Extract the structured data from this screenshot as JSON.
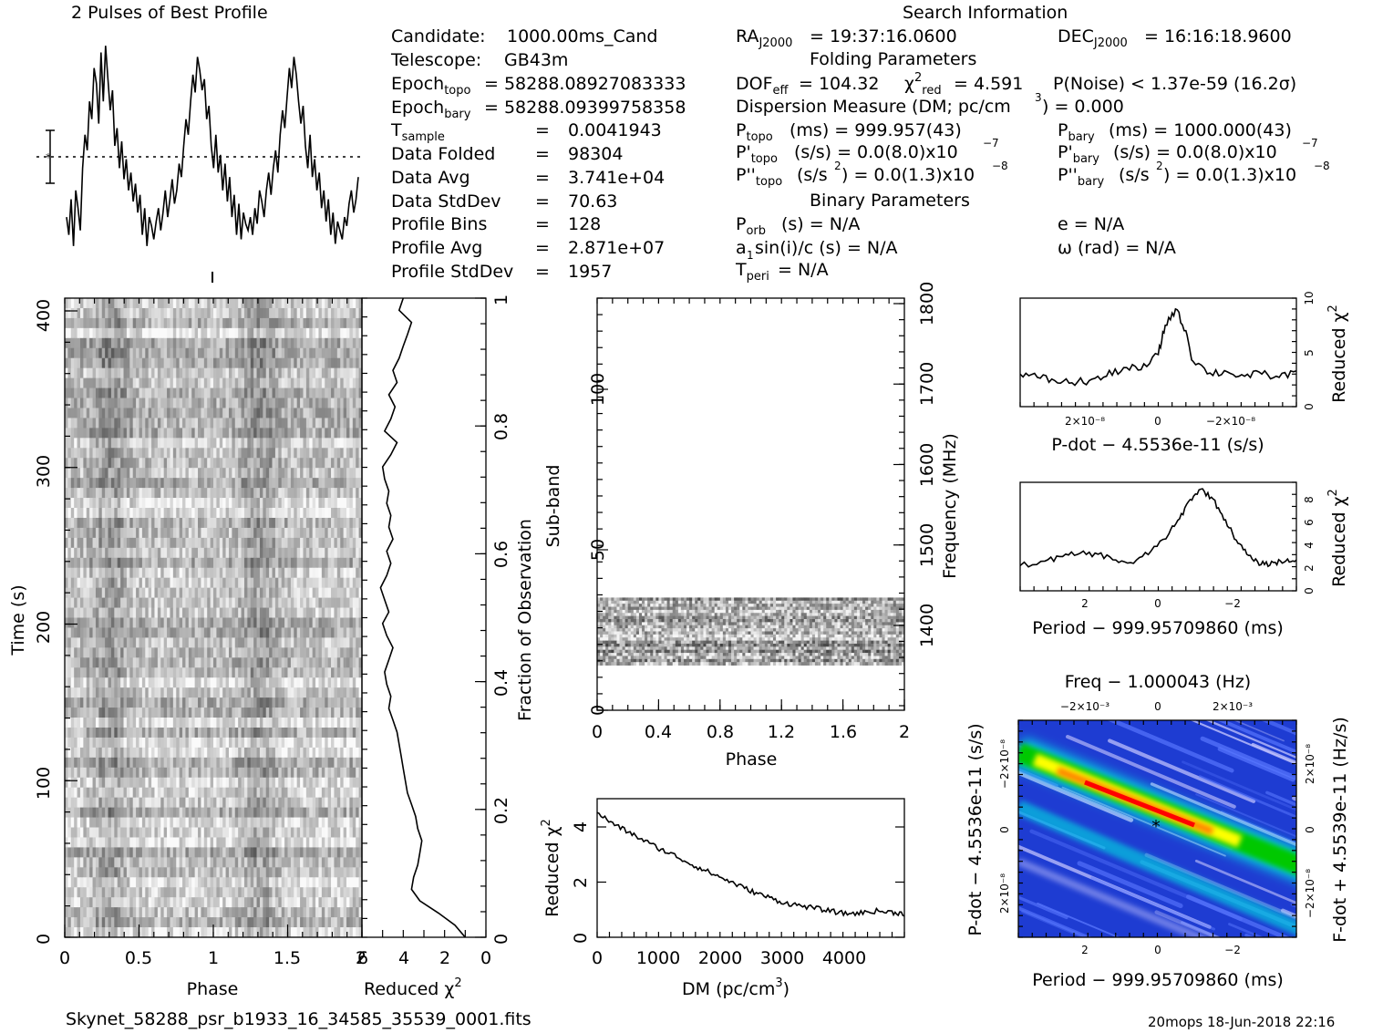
{
  "header": {
    "profile_title": "2 Pulses of Best Profile",
    "search_title": "Search Information",
    "folding_title": "Folding Parameters",
    "binary_title": "Binary Parameters"
  },
  "info": {
    "candidate": [
      "Candidate:",
      "1000.00ms_Cand"
    ],
    "telescope": [
      "Telescope:",
      "GB43m"
    ],
    "epoch_topo": "= 58288.08927083333",
    "epoch_bary": "= 58288.09399758358",
    "rows": [
      {
        "label": "T_sample",
        "value": "0.0041943"
      },
      {
        "label": "Data Folded",
        "value": "98304"
      },
      {
        "label": "Data Avg",
        "value": "3.741e+04"
      },
      {
        "label": "Data StdDev",
        "value": "70.63"
      },
      {
        "label": "Profile Bins",
        "value": "128"
      },
      {
        "label": "Profile Avg",
        "value": "2.871e+07"
      },
      {
        "label": "Profile StdDev",
        "value": "1957"
      }
    ],
    "ra": "= 19:37:16.0600",
    "dec": "= 16:16:18.9600",
    "dof": "= 104.32",
    "chi2": "= 4.591",
    "pnoise": "P(Noise) < 1.37e-59   (16.2σ)",
    "dm": "Dispersion Measure (DM; pc/cm",
    "dm_value": ") = 0.000",
    "ptopo": "(ms)  =   999.957(43)",
    "pbary": "(ms)  =   1000.000(43)",
    "pdtopo": "(s/s) = 0.0(8.0)x10",
    "pdbary": "(s/s) = 0.0(8.0)x10",
    "pddtopo": "(s/s",
    "pddbary": "(s/s",
    "pdd_value": ") = 0.0(1.3)x10",
    "porb": "(s) = N/A",
    "asini": "a",
    "asini_rest": "sin(i)/c (s) = N/A",
    "tperi": "= N/A",
    "ecc": "e = N/A",
    "omega": "ω (rad) = N/A"
  },
  "footer": {
    "filename": "Skynet_58288_psr_b1933_16_34585_35539_0001.fits",
    "stamp": "20mops 18-Jun-2018 22:16"
  },
  "chart_data": [
    {
      "name": "profile",
      "type": "line",
      "title": "2 Pulses of Best Profile",
      "x_range": [
        0,
        2
      ],
      "values": [
        0.18,
        0.1,
        0.26,
        0.05,
        0.3,
        0.22,
        0.12,
        0.4,
        0.55,
        0.48,
        0.7,
        0.62,
        0.85,
        0.78,
        0.6,
        0.92,
        0.7,
        0.95,
        0.8,
        0.66,
        0.75,
        0.5,
        0.58,
        0.4,
        0.52,
        0.35,
        0.44,
        0.3,
        0.38,
        0.25,
        0.33,
        0.2,
        0.28,
        0.1,
        0.22,
        0.05,
        0.18,
        0.14,
        0.08,
        0.16,
        0.22,
        0.12,
        0.2,
        0.3,
        0.18,
        0.26,
        0.35,
        0.24,
        0.3,
        0.42,
        0.36,
        0.5,
        0.62,
        0.55,
        0.7,
        0.82,
        0.74,
        0.9,
        0.84,
        0.75,
        0.8,
        0.62,
        0.68,
        0.5,
        0.4,
        0.55,
        0.38,
        0.46,
        0.3,
        0.42,
        0.25,
        0.36,
        0.18,
        0.28,
        0.1,
        0.24,
        0.08,
        0.2,
        0.15,
        0.12,
        0.18,
        0.1,
        0.22,
        0.15,
        0.3,
        0.25,
        0.18,
        0.3,
        0.38,
        0.28,
        0.4,
        0.48,
        0.38,
        0.55,
        0.66,
        0.58,
        0.72,
        0.85,
        0.76,
        0.9,
        0.82,
        0.7,
        0.6,
        0.68,
        0.5,
        0.4,
        0.55,
        0.36,
        0.44,
        0.3,
        0.38,
        0.22,
        0.3,
        0.16,
        0.26,
        0.1,
        0.2,
        0.06,
        0.16,
        0.12,
        0.08,
        0.18,
        0.14,
        0.24,
        0.3,
        0.2,
        0.26,
        0.36
      ]
    },
    {
      "name": "time-phase",
      "type": "heatmap",
      "xlabel": "Phase",
      "ylabel": "Time (s)",
      "x_range": [
        0,
        2
      ],
      "y_range": [
        0,
        410
      ],
      "x_ticks": [
        "0",
        "0.5",
        "1",
        "1.5",
        "2"
      ],
      "y_ticks": [
        "0",
        "100",
        "200",
        "300",
        "400"
      ],
      "rows": 64
    },
    {
      "name": "reduced-chi2-vs-time",
      "type": "line",
      "xlabel": "Reduced χ²",
      "ylabel": "Fraction of Observation",
      "x_range": [
        6,
        0
      ],
      "y_range": [
        0,
        1
      ],
      "x_ticks": [
        "6",
        "4",
        "2",
        "0"
      ],
      "y_ticks": [
        "0",
        "0.2",
        "0.4",
        "0.6",
        "0.8",
        "1"
      ],
      "x": [
        1.0,
        1.5,
        2.3,
        3.2,
        3.6,
        3.5,
        3.3,
        3.2,
        3.1,
        3.3,
        3.4,
        3.6,
        3.8,
        3.9,
        4.0,
        4.1,
        4.2,
        4.3,
        4.5,
        4.7,
        4.6,
        4.8,
        4.9,
        4.7,
        4.5,
        4.8,
        5.0,
        4.7,
        4.9,
        5.1,
        4.8,
        4.6,
        4.8,
        4.5,
        4.7,
        4.6,
        4.8,
        4.7,
        4.9,
        5.0,
        4.6,
        4.3,
        4.9,
        4.6,
        4.4,
        4.7,
        4.3,
        4.5,
        4.2,
        4.0,
        3.8,
        3.6,
        4.2,
        4.0
      ],
      "y": [
        0.0,
        0.019,
        0.038,
        0.057,
        0.075,
        0.094,
        0.113,
        0.132,
        0.151,
        0.17,
        0.189,
        0.208,
        0.226,
        0.245,
        0.264,
        0.283,
        0.302,
        0.321,
        0.34,
        0.358,
        0.377,
        0.396,
        0.415,
        0.434,
        0.453,
        0.472,
        0.491,
        0.509,
        0.528,
        0.547,
        0.566,
        0.585,
        0.604,
        0.623,
        0.642,
        0.66,
        0.679,
        0.698,
        0.717,
        0.736,
        0.755,
        0.774,
        0.792,
        0.811,
        0.83,
        0.849,
        0.868,
        0.887,
        0.906,
        0.925,
        0.943,
        0.962,
        0.981,
        1.0
      ]
    },
    {
      "name": "subband-phase",
      "type": "heatmap",
      "xlabel": "Phase",
      "ylabel": "Sub-band",
      "y2label": "Frequency (MHz)",
      "x_range": [
        0,
        2
      ],
      "y_range": [
        0,
        128
      ],
      "x_ticks": [
        "0",
        "0.4",
        "0.8",
        "1.2",
        "1.6",
        "2"
      ],
      "y_ticks": [
        "0",
        "50",
        "100"
      ],
      "y2_ticks": [
        "1400",
        "1500",
        "1600",
        "1700",
        "1800"
      ],
      "filled_band": [
        14,
        35
      ]
    },
    {
      "name": "reduced-chi2-vs-dm",
      "type": "line",
      "xlabel": "DM (pc/cm³)",
      "ylabel": "Reduced χ²",
      "x_range": [
        0,
        4950
      ],
      "y_range": [
        0,
        5
      ],
      "x_ticks": [
        "0",
        "1000",
        "2000",
        "3000",
        "4000"
      ],
      "y_ticks": [
        "0",
        "2",
        "4"
      ],
      "x": [
        0,
        250,
        500,
        750,
        1000,
        1250,
        1500,
        1750,
        2000,
        2250,
        2500,
        2750,
        3000,
        3250,
        3500,
        3750,
        4000,
        4250,
        4500,
        4750,
        4950
      ],
      "y": [
        4.5,
        4.1,
        3.8,
        3.5,
        3.2,
        2.95,
        2.65,
        2.4,
        2.15,
        1.9,
        1.65,
        1.45,
        1.25,
        1.15,
        1.05,
        0.95,
        0.85,
        0.88,
        0.95,
        0.9,
        0.85
      ]
    },
    {
      "name": "reduced-chi2-vs-pdot",
      "type": "line",
      "xlabel": "P-dot − 4.5536e-11 (s/s)",
      "ylabel": "Reduced χ²",
      "x_range": [
        4e-08,
        -4e-08
      ],
      "y_range": [
        0,
        10
      ],
      "x_ticks": [
        "2×10⁻⁸",
        "0",
        "−2×10⁻⁸"
      ],
      "y_ticks": [
        "0",
        "5",
        "10"
      ],
      "x": [
        4e-08,
        3.5e-08,
        3e-08,
        2.5e-08,
        2e-08,
        1.5e-08,
        1e-08,
        5e-09,
        0,
        -2e-09,
        -5e-09,
        -8e-09,
        -1e-08,
        -1.5e-08,
        -2e-08,
        -2.5e-08,
        -3e-08,
        -3.5e-08,
        -4e-08
      ],
      "y": [
        3.0,
        2.7,
        2.4,
        2.2,
        2.4,
        2.8,
        3.6,
        3.4,
        4.8,
        7.5,
        9.0,
        7.0,
        4.2,
        3.1,
        3.2,
        2.8,
        3.0,
        2.7,
        3.3
      ]
    },
    {
      "name": "reduced-chi2-vs-period",
      "type": "line",
      "xlabel": "Period − 999.95709860 (ms)",
      "ylabel": "Reduced χ²",
      "x_range": [
        4.2,
        -3.6
      ],
      "y_range": [
        0,
        9.5
      ],
      "x_ticks": [
        "2",
        "0",
        "−2"
      ],
      "y_ticks": [
        "0",
        "2",
        "4",
        "6",
        "8"
      ],
      "x": [
        4.2,
        3.5,
        3.0,
        2.5,
        2.0,
        1.5,
        1.0,
        0.5,
        0.0,
        -0.3,
        -0.6,
        -0.9,
        -1.2,
        -1.5,
        -1.8,
        -2.1,
        -2.4,
        -2.7,
        -3.0,
        -3.3,
        -3.6
      ],
      "y": [
        2.2,
        2.6,
        3.0,
        3.3,
        3.2,
        2.7,
        2.4,
        3.5,
        5.0,
        6.3,
        8.0,
        8.9,
        8.2,
        6.7,
        5.0,
        3.6,
        2.6,
        2.3,
        2.5,
        2.6,
        2.7
      ]
    },
    {
      "name": "period-pdot-plane",
      "type": "heatmap",
      "title": "Freq − 1.000043 (Hz)",
      "xlabel": "Period − 999.95709860 (ms)",
      "ylabel": "P-dot − 4.5536e-11 (s/s)",
      "y2label": "F-dot + 4.5539e-11 (Hz/s)",
      "x_ticks": [
        "2",
        "0",
        "−2"
      ],
      "x2_ticks": [
        "−2×10⁻³",
        "0",
        "2×10⁻³"
      ],
      "y_ticks": [
        "2×10⁻⁸",
        "0",
        "−2×10⁻⁸"
      ],
      "y2_ticks": [
        "−2×10⁻⁸",
        "0",
        "2×10⁻⁸"
      ],
      "colors": [
        "#1e3cd2",
        "#5a78ff",
        "#c8c8ff",
        "#00e0e0",
        "#00c800",
        "#ffff00",
        "#ff8000",
        "#ff0000"
      ]
    }
  ]
}
